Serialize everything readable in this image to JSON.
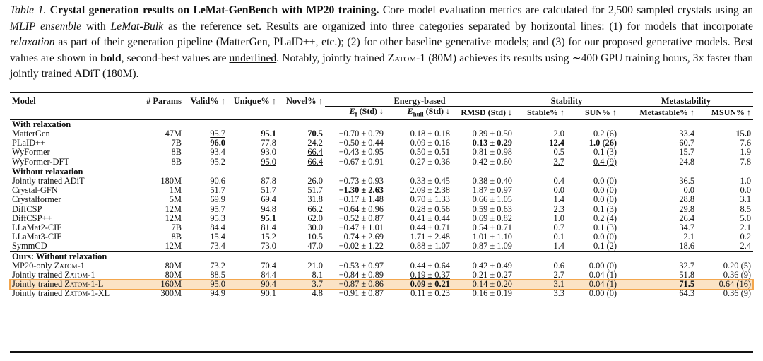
{
  "caption": {
    "label": "Table 1.",
    "title": "Crystal generation results on LeMat-GenBench with MP20 training.",
    "p1": " Core model evaluation metrics are calculated for 2,500 sampled crystals using an ",
    "mlip": "MLIP ensemble",
    "p2": " with ",
    "bulk": "LeMat-Bulk",
    "p3": " as the reference set. Results are organized into three categories separated by horizontal lines: (1) for models that incorporate ",
    "relax": "relaxation",
    "p4": " as part of their generation pipeline (MatterGen, PLaID++, etc.); (2) for other baseline generative models; and (3) for our proposed generative models. Best values are shown in ",
    "bold_word": "bold",
    "p5": ", second-best values are ",
    "underlined_word": "underlined",
    "p6": ". Notably, jointly trained ",
    "zatom": "Zatom-1",
    "p7": " (80M) achieves its results using ∼400 GPU training hours, 3x faster than jointly trained ADiT (180M)."
  },
  "headers": {
    "model": "Model",
    "params": "# Params",
    "valid": "Valid% ↑",
    "unique": "Unique% ↑",
    "novel": "Novel% ↑",
    "energy_group": "Energy-based",
    "stability_group": "Stability",
    "metastability_group": "Metastability",
    "ef": "E",
    "ef_sub": "f",
    "ef_tail": " (Std) ↓",
    "ehull": "E",
    "ehull_sub": "hull",
    "ehull_tail": " (Std) ↓",
    "rmsd": "RMSD (Std) ↓",
    "stable": "Stable% ↑",
    "sun": "SUN% ↑",
    "metastable": "Metastable% ↑",
    "msun": "MSUN% ↑"
  },
  "sections": [
    {
      "title": "With relaxation",
      "rows": [
        [
          "MatterGen",
          "47M",
          "95.7",
          "95.1",
          "70.5",
          "−0.70 ± 0.79",
          "0.18 ± 0.18",
          "0.39 ± 0.50",
          "2.0",
          "0.2 (6)",
          "33.4",
          "15.0"
        ],
        [
          "PLaID++",
          "7B",
          "96.0",
          "77.8",
          "24.2",
          "−0.50 ± 0.44",
          "0.09 ± 0.16",
          "0.13 ± 0.29",
          "12.4",
          "1.0 (26)",
          "60.7",
          "7.6"
        ],
        [
          "WyFormer",
          "8B",
          "93.4",
          "93.0",
          "66.4",
          "−0.43 ± 0.95",
          "0.50 ± 0.51",
          "0.81 ± 0.98",
          "0.5",
          "0.1 (3)",
          "15.7",
          "1.9"
        ],
        [
          "WyFormer-DFT",
          "8B",
          "95.2",
          "95.0",
          "66.4",
          "−0.67 ± 0.91",
          "0.27 ± 0.36",
          "0.42 ± 0.60",
          "3.7",
          "0.4 (9)",
          "24.8",
          "7.8"
        ]
      ]
    },
    {
      "title": "Without relaxation",
      "rows": [
        [
          "Jointly trained ADiT",
          "180M",
          "90.6",
          "87.8",
          "26.0",
          "−0.73 ± 0.93",
          "0.33 ± 0.45",
          "0.38 ± 0.40",
          "0.4",
          "0.0 (0)",
          "36.5",
          "1.0"
        ],
        [
          "Crystal-GFN",
          "1M",
          "51.7",
          "51.7",
          "51.7",
          "−1.30 ± 2.63",
          "2.09 ± 2.38",
          "1.87 ± 0.97",
          "0.0",
          "0.0 (0)",
          "0.0",
          "0.0"
        ],
        [
          "Crystalformer",
          "5M",
          "69.9",
          "69.4",
          "31.8",
          "−0.17 ± 1.48",
          "0.70 ± 1.33",
          "0.66 ± 1.05",
          "1.4",
          "0.0 (0)",
          "28.8",
          "3.1"
        ],
        [
          "DiffCSP",
          "12M",
          "95.7",
          "94.8",
          "66.2",
          "−0.64 ± 0.96",
          "0.28 ± 0.56",
          "0.59 ± 0.63",
          "2.3",
          "0.1 (3)",
          "29.8",
          "8.5"
        ],
        [
          "DiffCSP++",
          "12M",
          "95.3",
          "95.1",
          "62.0",
          "−0.52 ± 0.87",
          "0.41 ± 0.44",
          "0.69 ± 0.82",
          "1.0",
          "0.2 (4)",
          "26.4",
          "5.0"
        ],
        [
          "LLaMat2-CIF",
          "7B",
          "84.4",
          "81.4",
          "30.0",
          "−0.47 ± 1.01",
          "0.44 ± 0.71",
          "0.54 ± 0.71",
          "0.7",
          "0.1 (3)",
          "34.7",
          "2.1"
        ],
        [
          "LLaMat3-CIF",
          "8B",
          "15.4",
          "15.2",
          "10.5",
          "0.74 ± 2.69",
          "1.71 ± 2.48",
          "1.01 ± 1.10",
          "0.1",
          "0.0 (0)",
          "2.1",
          "0.2"
        ],
        [
          "SymmCD",
          "12M",
          "73.4",
          "73.0",
          "47.0",
          "−0.02 ± 1.22",
          "0.88 ± 1.07",
          "0.87 ± 1.09",
          "1.4",
          "0.1 (2)",
          "18.6",
          "2.4"
        ]
      ]
    },
    {
      "title": "Ours: Without relaxation",
      "rows": [
        [
          "MP20-only Zatom-1",
          "80M",
          "73.2",
          "70.4",
          "21.0",
          "−0.53 ± 0.97",
          "0.44 ± 0.64",
          "0.42 ± 0.49",
          "0.6",
          "0.00 (0)",
          "32.7",
          "0.20 (5)"
        ],
        [
          "Jointly trained Zatom-1",
          "80M",
          "88.5",
          "84.4",
          "8.1",
          "−0.84 ± 0.89",
          "0.19 ± 0.37",
          "0.21 ± 0.27",
          "2.7",
          "0.04 (1)",
          "51.8",
          "0.36 (9)"
        ],
        [
          "Jointly trained Zatom-1-L",
          "160M",
          "95.0",
          "90.4",
          "3.7",
          "−0.87 ± 0.86",
          "0.09 ± 0.21",
          "0.14 ± 0.20",
          "3.1",
          "0.04 (1)",
          "71.5",
          "0.64 (16)"
        ],
        [
          "Jointly trained Zatom-1-XL",
          "300M",
          "94.9",
          "90.1",
          "4.8",
          "−0.91 ± 0.87",
          "0.11 ± 0.23",
          "0.16 ± 0.19",
          "3.3",
          "0.00 (0)",
          "64.3",
          "0.36 (9)"
        ]
      ]
    }
  ]
}
